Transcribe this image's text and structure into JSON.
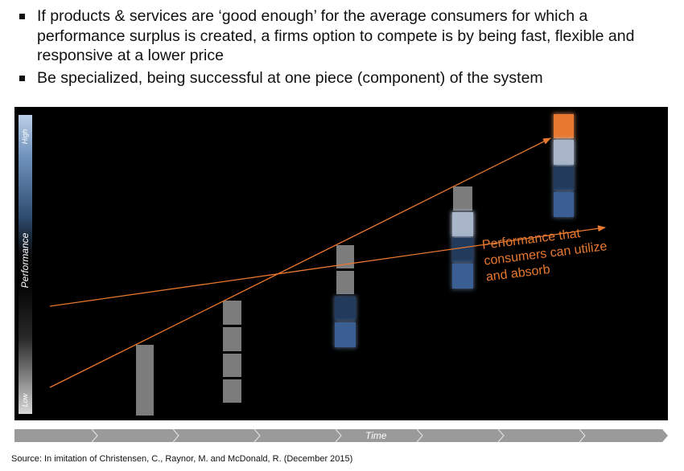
{
  "bullets": [
    "If products & services are ‘good enough’ for the average consumers for which a performance surplus is created, a firms option to compete is by being fast, flexible and responsive at a lower price",
    "Be specialized, being successful at one piece (component) of the system"
  ],
  "diagram": {
    "y_axis": {
      "label": "Performance",
      "high": "High",
      "low": "Low"
    },
    "x_axis": {
      "label": "Time"
    },
    "trend_label": [
      "Performance that",
      "consumers can utilize",
      "and absorb"
    ],
    "colors": {
      "background": "#000000",
      "arrow": "#e8782e",
      "gray_block": "#7c7c7c",
      "light_blue_block": "#a9b6c9",
      "dark_blue_block": "#223a5c",
      "mid_blue_block": "#3a5f94",
      "orange_block": "#e8782e"
    },
    "stacks": [
      {
        "blocks": [
          "gray"
        ]
      },
      {
        "blocks": [
          "gray",
          "gray",
          "gray",
          "gray"
        ]
      },
      {
        "blocks": [
          "gray",
          "gray",
          "dark-blue",
          "mid-blue"
        ]
      },
      {
        "blocks": [
          "gray",
          "light-blue",
          "dark-blue",
          "mid-blue"
        ]
      },
      {
        "blocks": [
          "orange",
          "light-blue",
          "dark-blue",
          "mid-blue"
        ]
      }
    ]
  },
  "source": "Source: In imitation of Christensen, C., Raynor, M. and McDonald, R. (December 2015)"
}
